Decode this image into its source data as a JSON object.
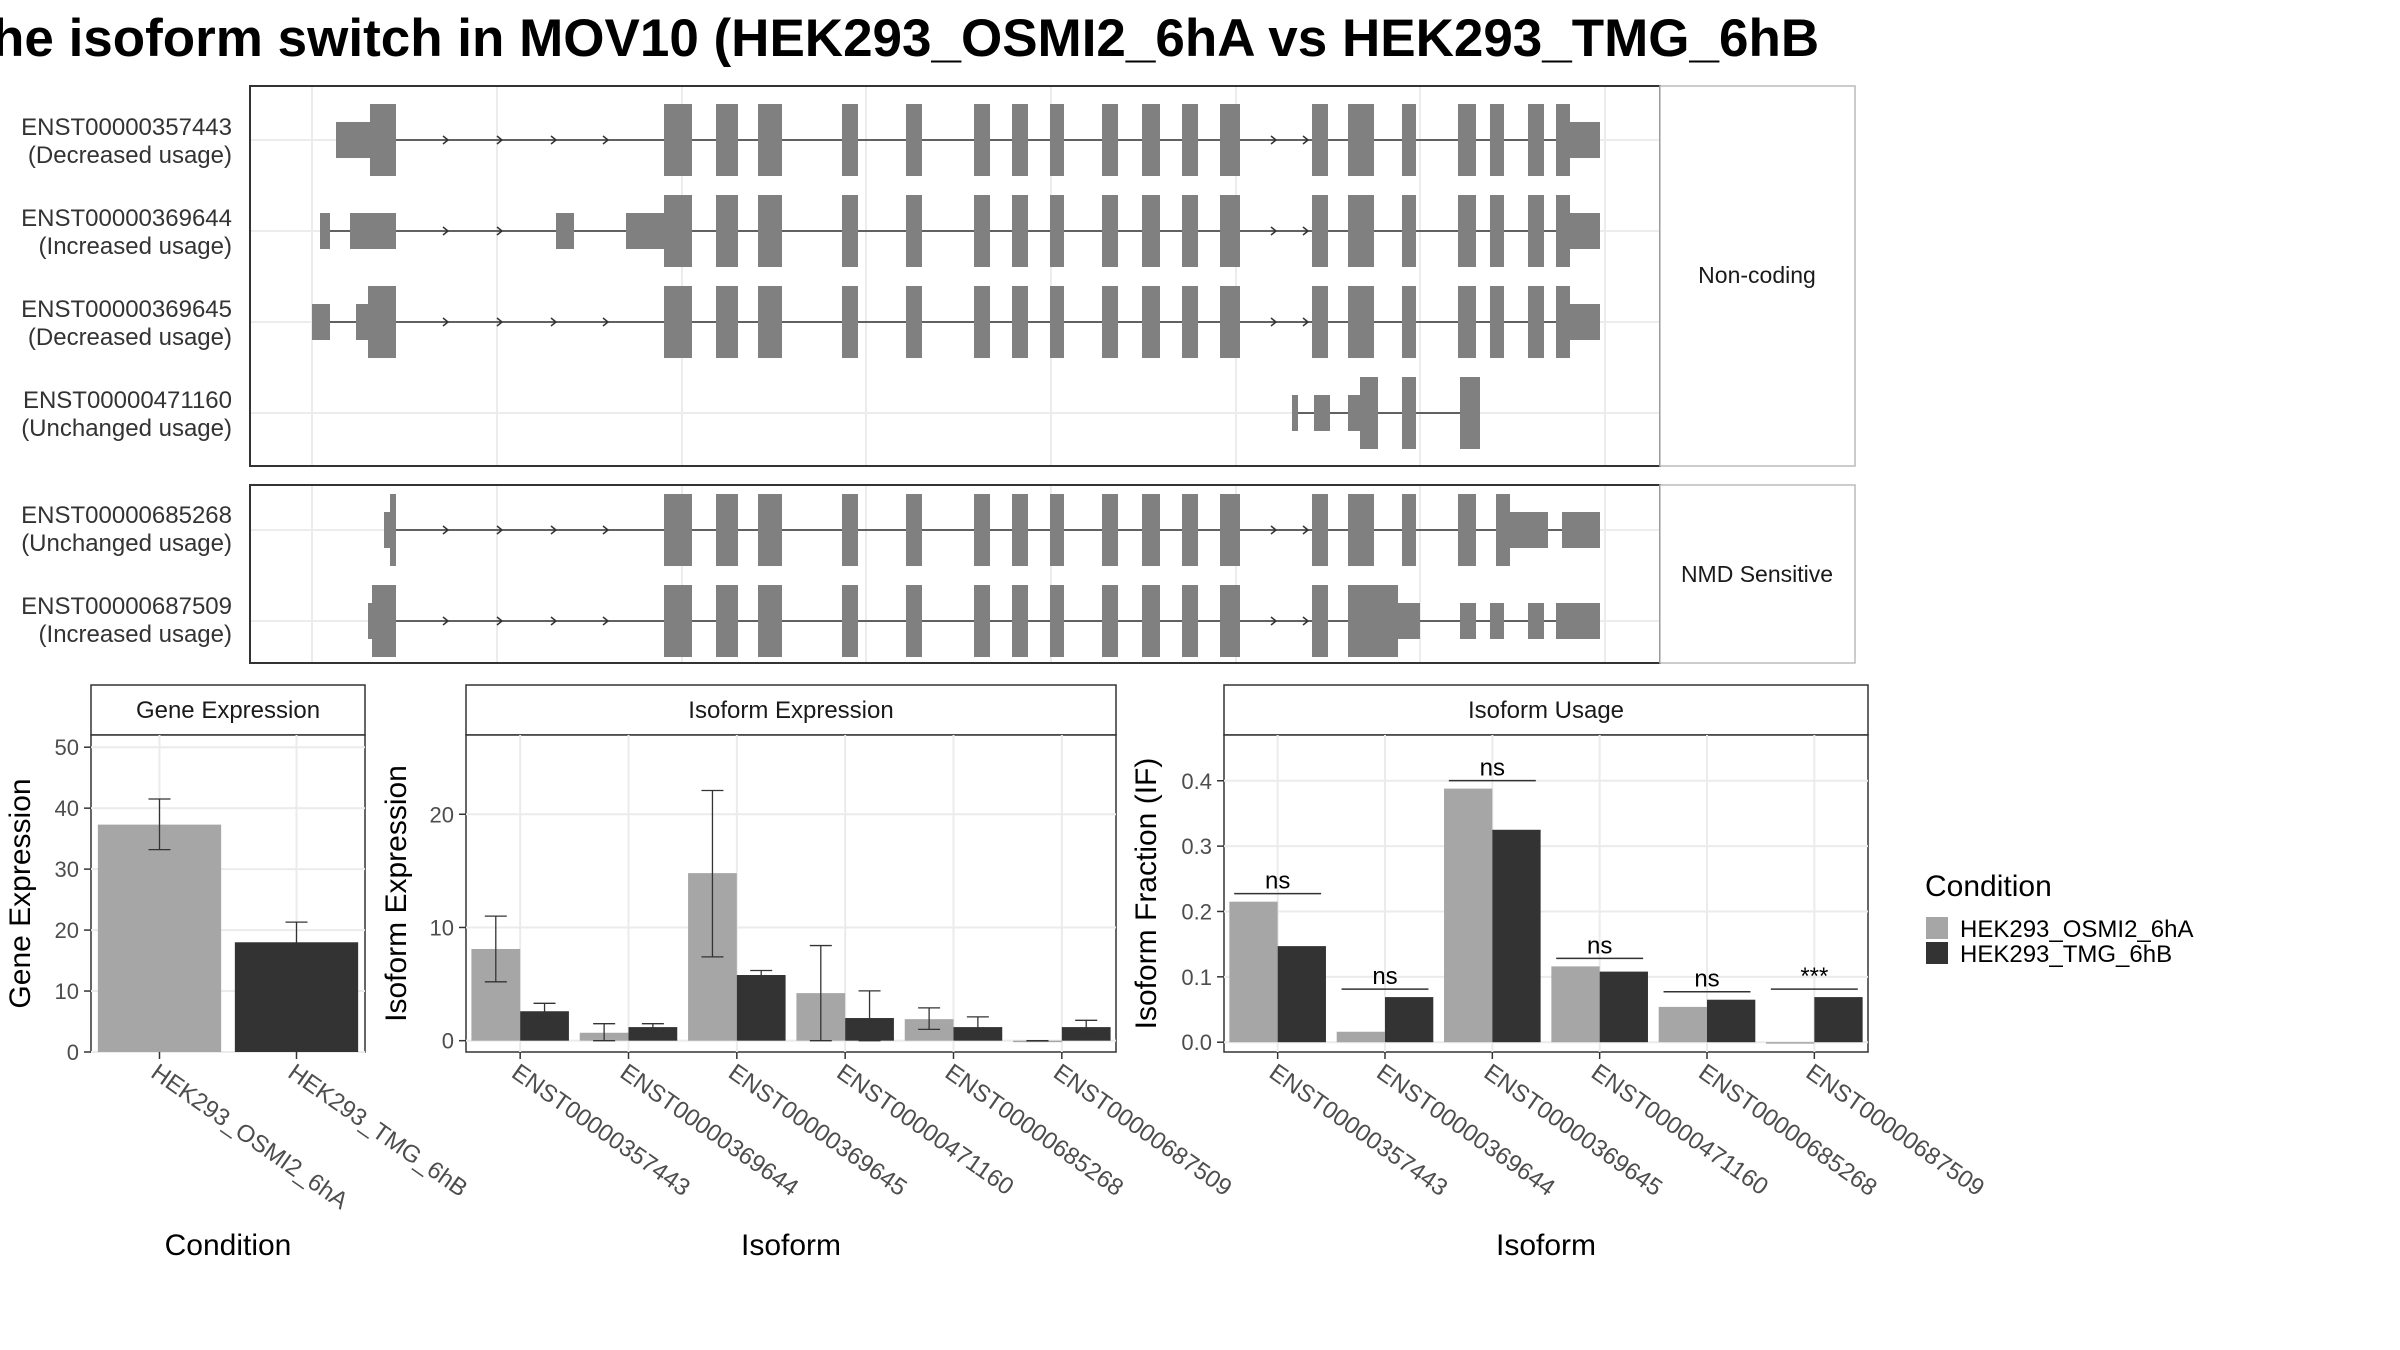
{
  "title": "he isoform switch in MOV10 (HEK293_OSMI2_6hA vs HEK293_TMG_6hB",
  "structure": {
    "groups": [
      {
        "label": "Non-coding",
        "transcripts": [
          {
            "id": "ENST00000357443",
            "usage": "(Decreased usage)"
          },
          {
            "id": "ENST00000369644",
            "usage": "(Increased usage)"
          },
          {
            "id": "ENST00000369645",
            "usage": "(Decreased usage)"
          },
          {
            "id": "ENST00000471160",
            "usage": "(Unchanged usage)"
          }
        ]
      },
      {
        "label": "NMD Sensitive",
        "transcripts": [
          {
            "id": "ENST00000685268",
            "usage": "(Unchanged usage)"
          },
          {
            "id": "ENST00000687509",
            "usage": "(Increased usage)"
          }
        ]
      }
    ]
  },
  "legend": {
    "title": "Condition",
    "items": [
      {
        "label": "HEK293_OSMI2_6hA",
        "color": "#a6a6a6"
      },
      {
        "label": "HEK293_TMG_6hB",
        "color": "#333333"
      }
    ]
  },
  "chart_data": [
    {
      "type": "bar",
      "title": "Gene Expression",
      "xlabel": "Condition",
      "ylabel": "Gene Expression",
      "ylim": [
        0,
        52
      ],
      "yticks": [
        0,
        10,
        20,
        30,
        40,
        50
      ],
      "categories": [
        "HEK293_OSMI2_6hA",
        "HEK293_TMG_6hB"
      ],
      "values": [
        37.3,
        18.0
      ],
      "err_low": [
        33.2,
        15.0
      ],
      "err_high": [
        41.5,
        21.3
      ],
      "colors": [
        "#a6a6a6",
        "#333333"
      ]
    },
    {
      "type": "bar",
      "title": "Isoform Expression",
      "xlabel": "Isoform",
      "ylabel": "Isoform Expression",
      "ylim": [
        -1,
        27
      ],
      "yticks": [
        0,
        10,
        20
      ],
      "categories": [
        "ENST00000357443",
        "ENST00000369644",
        "ENST00000369645",
        "ENST00000471160",
        "ENST00000685268",
        "ENST00000687509"
      ],
      "series": [
        {
          "name": "HEK293_OSMI2_6hA",
          "values": [
            8.1,
            0.7,
            14.8,
            4.2,
            1.9,
            0.0
          ],
          "err_low": [
            5.2,
            0.0,
            7.4,
            0.0,
            1.0,
            0.0
          ],
          "err_high": [
            11.0,
            1.5,
            22.1,
            8.4,
            2.9,
            0.0
          ]
        },
        {
          "name": "HEK293_TMG_6hB",
          "values": [
            2.6,
            1.2,
            5.8,
            2.0,
            1.2,
            1.2
          ],
          "err_low": [
            2.0,
            0.9,
            5.5,
            0.0,
            0.5,
            0.7
          ],
          "err_high": [
            3.3,
            1.5,
            6.2,
            4.4,
            2.1,
            1.8
          ]
        }
      ]
    },
    {
      "type": "bar",
      "title": "Isoform Usage",
      "xlabel": "Isoform",
      "ylabel": "Isoform Fraction (IF)",
      "ylim": [
        -0.015,
        0.47
      ],
      "yticks": [
        "0.0",
        "0.1",
        "0.2",
        "0.3",
        "0.4"
      ],
      "categories": [
        "ENST00000357443",
        "ENST00000369644",
        "ENST00000369645",
        "ENST00000471160",
        "ENST00000685268",
        "ENST00000687509"
      ],
      "series": [
        {
          "name": "HEK293_OSMI2_6hA",
          "values": [
            0.215,
            0.016,
            0.388,
            0.116,
            0.054,
            0.0
          ]
        },
        {
          "name": "HEK293_TMG_6hB",
          "values": [
            0.147,
            0.069,
            0.325,
            0.108,
            0.065,
            0.069
          ]
        }
      ],
      "significance": [
        "ns",
        "ns",
        "ns",
        "ns",
        "ns",
        "***"
      ]
    }
  ]
}
